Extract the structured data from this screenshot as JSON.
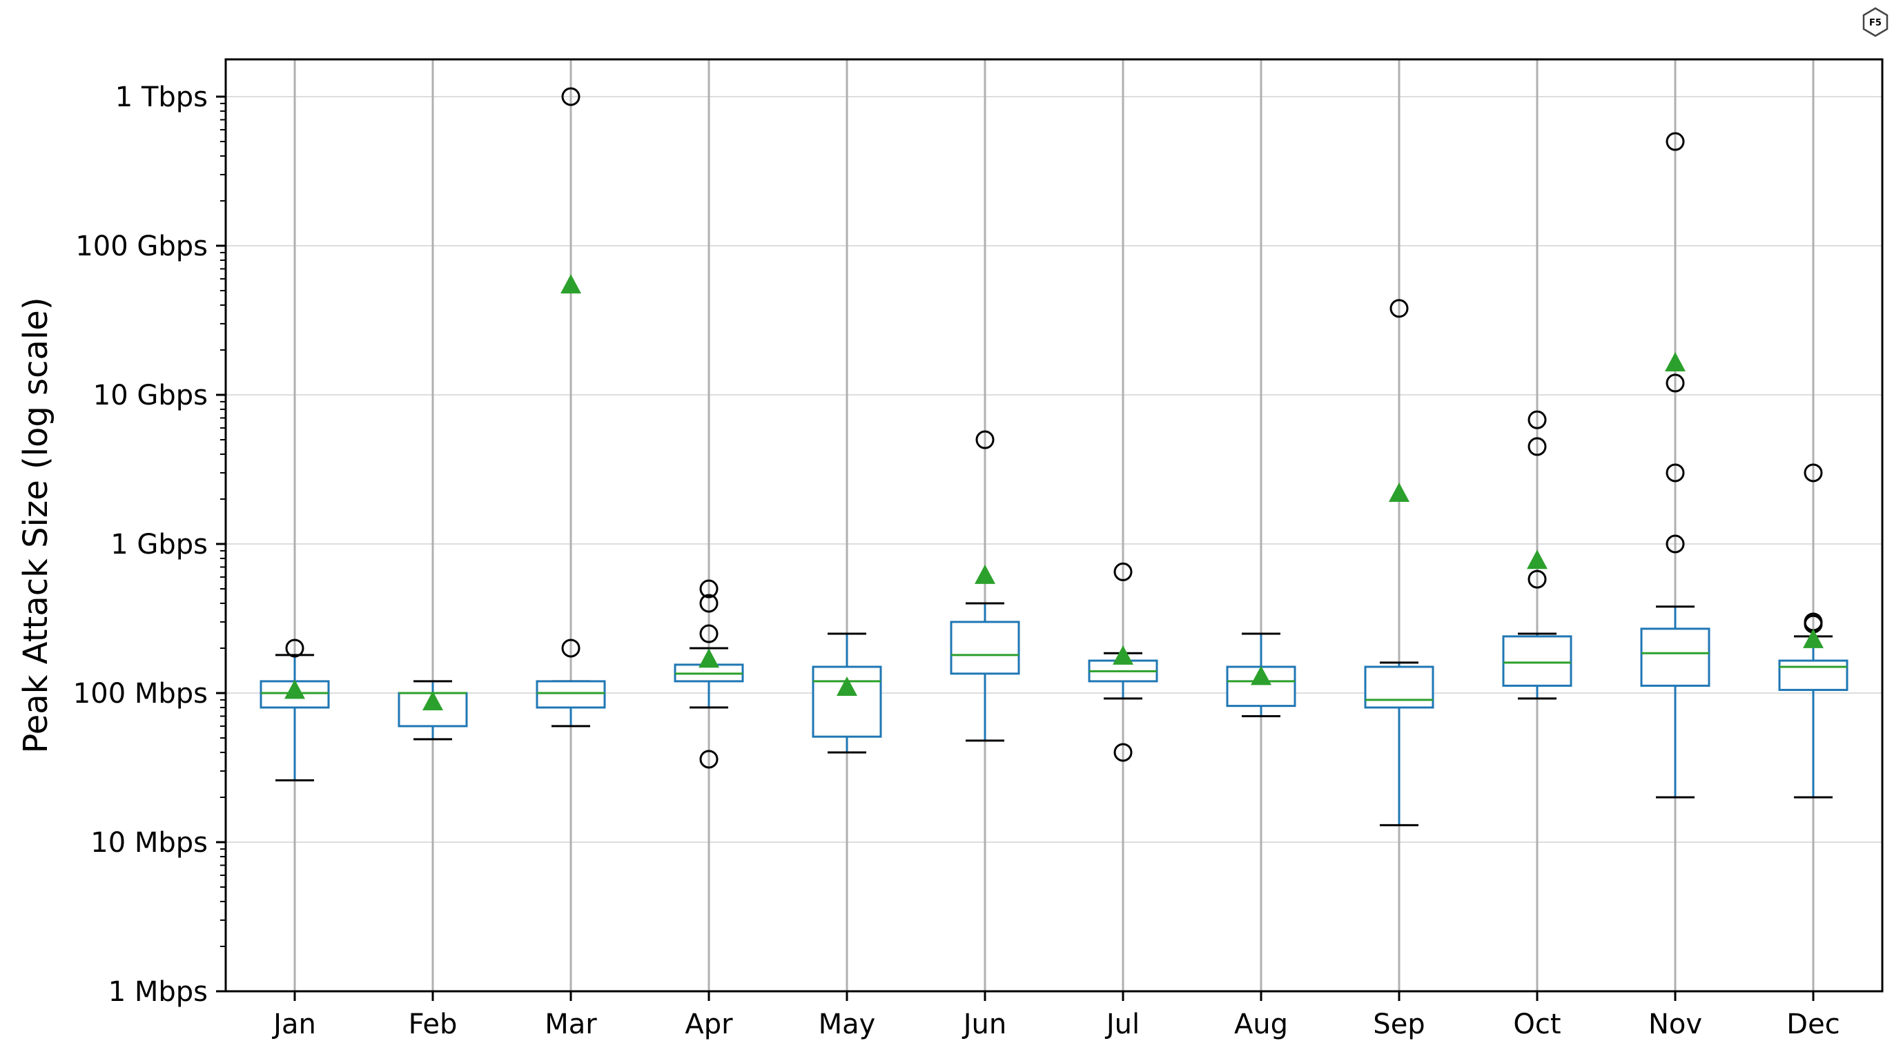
{
  "chart_data": {
    "type": "box",
    "title": "",
    "xlabel": "",
    "ylabel": "Peak Attack Size (log scale)",
    "yscale": "log",
    "ylim_mbps": [
      1,
      1000000
    ],
    "y_ticks": [
      {
        "value_mbps": 1,
        "label": "1 Mbps"
      },
      {
        "value_mbps": 10,
        "label": "10 Mbps"
      },
      {
        "value_mbps": 100,
        "label": "100 Mbps"
      },
      {
        "value_mbps": 1000,
        "label": "1 Gbps"
      },
      {
        "value_mbps": 10000,
        "label": "10 Gbps"
      },
      {
        "value_mbps": 100000,
        "label": "100 Gbps"
      },
      {
        "value_mbps": 1000000,
        "label": "1 Tbps"
      }
    ],
    "grid": true,
    "colors": {
      "box": "#1f77b4",
      "median": "#2ca02c",
      "mean": "#2ca02c",
      "whisker_cap": "#000000",
      "grid": "#b0b0b0",
      "hgrid": "#dddddd"
    },
    "categories": [
      "Jan",
      "Feb",
      "Mar",
      "Apr",
      "May",
      "Jun",
      "Jul",
      "Aug",
      "Sep",
      "Oct",
      "Nov",
      "Dec"
    ],
    "boxes": [
      {
        "month": "Jan",
        "whislo": 26,
        "q1": 80,
        "med": 100,
        "q3": 120,
        "whishi": 180,
        "mean": 105,
        "fliers": [
          200
        ]
      },
      {
        "month": "Feb",
        "whislo": 49,
        "q1": 60,
        "med": 100,
        "q3": 100,
        "whishi": 120,
        "mean": 88,
        "fliers": []
      },
      {
        "month": "Mar",
        "whislo": 60,
        "q1": 80,
        "med": 100,
        "q3": 120,
        "whishi": 120,
        "mean": 55000,
        "fliers": [
          200,
          1000000
        ]
      },
      {
        "month": "Apr",
        "whislo": 80,
        "q1": 120,
        "med": 135,
        "q3": 155,
        "whishi": 200,
        "mean": 170,
        "fliers": [
          36,
          250,
          400,
          500
        ]
      },
      {
        "month": "May",
        "whislo": 40,
        "q1": 51,
        "med": 120,
        "q3": 150,
        "whishi": 250,
        "mean": 110,
        "fliers": []
      },
      {
        "month": "Jun",
        "whislo": 48,
        "q1": 135,
        "med": 180,
        "q3": 300,
        "whishi": 400,
        "mean": 620,
        "fliers": [
          5000
        ]
      },
      {
        "month": "Jul",
        "whislo": 92,
        "q1": 120,
        "med": 140,
        "q3": 165,
        "whishi": 185,
        "mean": 178,
        "fliers": [
          40,
          650
        ]
      },
      {
        "month": "Aug",
        "whislo": 70,
        "q1": 82,
        "med": 120,
        "q3": 150,
        "whishi": 250,
        "mean": 130,
        "fliers": []
      },
      {
        "month": "Sep",
        "whislo": 13,
        "q1": 80,
        "med": 90,
        "q3": 150,
        "whishi": 160,
        "mean": 2200,
        "fliers": [
          38000
        ]
      },
      {
        "month": "Oct",
        "whislo": 92,
        "q1": 112,
        "med": 160,
        "q3": 240,
        "whishi": 250,
        "mean": 780,
        "fliers": [
          580,
          4500,
          6800
        ]
      },
      {
        "month": "Nov",
        "whislo": 20,
        "q1": 112,
        "med": 185,
        "q3": 270,
        "whishi": 380,
        "mean": 16500,
        "fliers": [
          1000,
          3000,
          12000,
          500000
        ]
      },
      {
        "month": "Dec",
        "whislo": 20,
        "q1": 105,
        "med": 150,
        "q3": 165,
        "whishi": 240,
        "mean": 230,
        "fliers": [
          290,
          300,
          3000
        ]
      }
    ]
  },
  "logo": {
    "text": "F5"
  }
}
